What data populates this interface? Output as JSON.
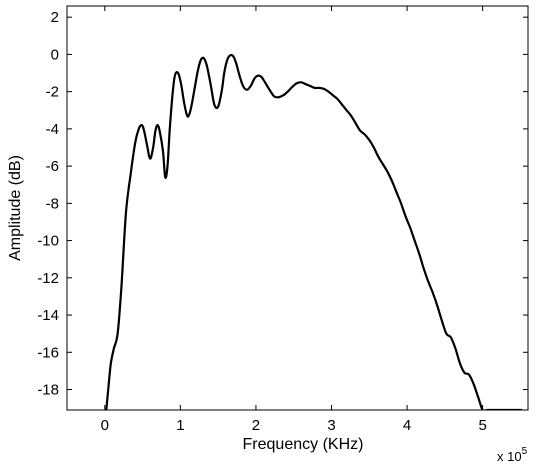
{
  "chart_data": {
    "type": "line",
    "title": "",
    "xlabel": "Frequency (KHz)",
    "ylabel": "Amplitude (dB)",
    "x_exponent": {
      "base": "x 10",
      "power": "5"
    },
    "xlim": [
      -0.5,
      5.6
    ],
    "ylim": [
      -19.1,
      2.6
    ],
    "x_ticks": [
      0,
      1,
      2,
      3,
      4,
      5
    ],
    "y_ticks": [
      2,
      0,
      -2,
      -4,
      -6,
      -8,
      -10,
      -12,
      -14,
      -16,
      -18
    ],
    "x_tick_labels": [
      "0",
      "1",
      "2",
      "3",
      "4",
      "5"
    ],
    "y_tick_labels": [
      "2",
      "0",
      "-2",
      "-4",
      "-6",
      "-8",
      "-10",
      "-12",
      "-14",
      "-16",
      "-18"
    ],
    "grid": false,
    "legend": "none",
    "series": [
      {
        "color": "#000000",
        "x": [
          0.02,
          0.05,
          0.08,
          0.12,
          0.17,
          0.22,
          0.28,
          0.34,
          0.4,
          0.45,
          0.49,
          0.52,
          0.56,
          0.6,
          0.64,
          0.67,
          0.7,
          0.73,
          0.77,
          0.8,
          0.83,
          0.86,
          0.9,
          0.93,
          0.97,
          1.01,
          1.05,
          1.09,
          1.12,
          1.15,
          1.19,
          1.23,
          1.27,
          1.31,
          1.35,
          1.4,
          1.45,
          1.5,
          1.55,
          1.58,
          1.62,
          1.66,
          1.7,
          1.74,
          1.78,
          1.83,
          1.88,
          1.93,
          1.98,
          2.02,
          2.07,
          2.12,
          2.18,
          2.24,
          2.3,
          2.36,
          2.42,
          2.48,
          2.54,
          2.6,
          2.66,
          2.72,
          2.78,
          2.84,
          2.9,
          2.96,
          3.02,
          3.08,
          3.14,
          3.2,
          3.26,
          3.32,
          3.38,
          3.44,
          3.5,
          3.56,
          3.62,
          3.68,
          3.74,
          3.8,
          3.86,
          3.92,
          3.98,
          4.04,
          4.1,
          4.16,
          4.22,
          4.28,
          4.34,
          4.4,
          4.46,
          4.52,
          4.58,
          4.64,
          4.7,
          4.76,
          4.82,
          4.88,
          4.94,
          5.0,
          5.06,
          5.12,
          5.18,
          5.24,
          5.3,
          5.36,
          5.42,
          5.48,
          5.52
        ],
        "y": [
          -19.1,
          -17.8,
          -16.6,
          -15.8,
          -15.0,
          -12.5,
          -8.5,
          -6.5,
          -4.8,
          -4.0,
          -3.8,
          -4.1,
          -4.9,
          -5.6,
          -5.0,
          -4.1,
          -3.8,
          -4.2,
          -5.2,
          -6.6,
          -6.0,
          -4.0,
          -2.0,
          -1.1,
          -1.0,
          -1.6,
          -2.6,
          -3.3,
          -3.2,
          -2.7,
          -1.8,
          -0.9,
          -0.3,
          -0.2,
          -0.6,
          -1.6,
          -2.7,
          -2.8,
          -1.9,
          -1.0,
          -0.3,
          -0.05,
          -0.1,
          -0.5,
          -1.1,
          -1.7,
          -1.9,
          -1.7,
          -1.3,
          -1.15,
          -1.2,
          -1.5,
          -1.9,
          -2.25,
          -2.3,
          -2.2,
          -2.0,
          -1.75,
          -1.55,
          -1.5,
          -1.6,
          -1.7,
          -1.8,
          -1.8,
          -1.85,
          -2.0,
          -2.2,
          -2.4,
          -2.7,
          -3.0,
          -3.3,
          -3.7,
          -4.1,
          -4.3,
          -4.6,
          -5.0,
          -5.5,
          -5.9,
          -6.3,
          -6.8,
          -7.4,
          -8.0,
          -8.7,
          -9.3,
          -10.0,
          -10.7,
          -11.5,
          -12.2,
          -12.8,
          -13.5,
          -14.3,
          -15.0,
          -15.2,
          -15.8,
          -16.6,
          -17.1,
          -17.2,
          -17.7,
          -18.4,
          -19.1,
          -19.1,
          -19.1,
          -19.1,
          -19.1,
          -19.1,
          -19.1,
          -19.1,
          -19.1,
          -19.1
        ]
      }
    ]
  }
}
